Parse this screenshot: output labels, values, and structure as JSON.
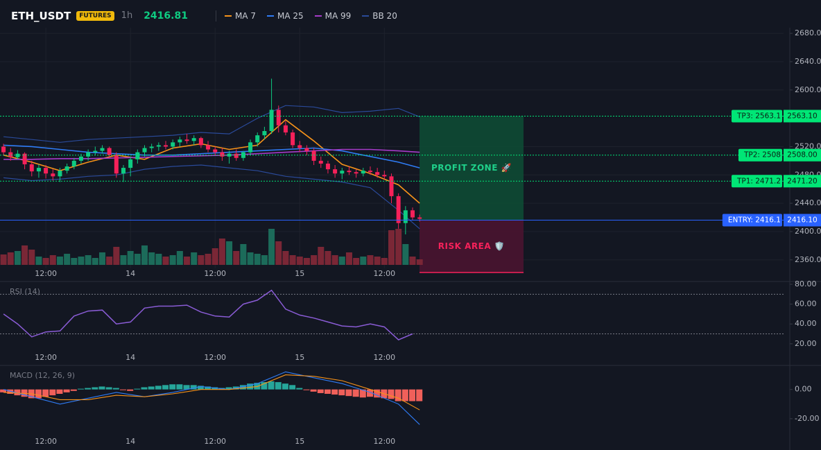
{
  "header": {
    "symbol": "ETH_USDT",
    "badge": "FUTURES",
    "interval": "1h",
    "price": "2416.81"
  },
  "chart_data": [
    {
      "type": "candlestick",
      "categories": [
        null,
        null,
        null,
        null,
        null,
        null,
        "12:00",
        null,
        null,
        null,
        null,
        null,
        null,
        null,
        null,
        null,
        null,
        null,
        "14",
        null,
        null,
        null,
        null,
        null,
        null,
        null,
        null,
        null,
        null,
        null,
        "12:00",
        null,
        null,
        null,
        null,
        null,
        null,
        null,
        null,
        null,
        null,
        null,
        "15",
        null,
        null,
        null,
        null,
        null,
        null,
        null,
        null,
        null,
        null,
        null,
        "12:00",
        null,
        null,
        null,
        null,
        null
      ],
      "xlim": [
        -0.5,
        110.6
      ],
      "ylim": [
        2350,
        2685
      ],
      "yticks": [
        {
          "value": 2680,
          "label": "2680.00"
        },
        {
          "value": 2640,
          "label": "2640.00"
        },
        {
          "value": 2600,
          "label": "2600.00"
        },
        {
          "value": 2520,
          "label": "2520.00"
        },
        {
          "value": 2480,
          "label": "2480.00"
        },
        {
          "value": 2440,
          "label": "2440.00"
        },
        {
          "value": 2400,
          "label": "2400.00"
        },
        {
          "value": 2360,
          "label": "2360.00"
        }
      ],
      "grid": true,
      "up_color": "#0ecb81",
      "down_color": "#f6215a",
      "open": [
        2520,
        2512,
        2505,
        2510,
        2495,
        2485,
        2490,
        2482,
        2478,
        2486,
        2492,
        2500,
        2506,
        2512,
        2514,
        2518,
        2508,
        2482,
        2490,
        2502,
        2512,
        2518,
        2520,
        2522,
        2520,
        2526,
        2530,
        2528,
        2532,
        2522,
        2516,
        2512,
        2506,
        2510,
        2504,
        2512,
        2526,
        2536,
        2542,
        2572,
        2550,
        2540,
        2522,
        2518,
        2514,
        2500,
        2496,
        2488,
        2482,
        2486,
        2484,
        2482,
        2486,
        2484,
        2480,
        2478,
        2450,
        2412,
        2430,
        2420
      ],
      "high": [
        2524,
        2518,
        2515,
        2512,
        2500,
        2495,
        2494,
        2488,
        2490,
        2496,
        2504,
        2510,
        2516,
        2520,
        2522,
        2520,
        2512,
        2494,
        2506,
        2516,
        2522,
        2524,
        2526,
        2528,
        2530,
        2534,
        2538,
        2536,
        2534,
        2528,
        2520,
        2518,
        2514,
        2516,
        2514,
        2530,
        2540,
        2548,
        2616,
        2578,
        2556,
        2544,
        2528,
        2522,
        2518,
        2506,
        2500,
        2494,
        2490,
        2492,
        2488,
        2490,
        2492,
        2490,
        2486,
        2482,
        2454,
        2436,
        2434,
        2424
      ],
      "low": [
        2508,
        2500,
        2502,
        2488,
        2478,
        2476,
        2475,
        2472,
        2470,
        2482,
        2488,
        2496,
        2500,
        2508,
        2510,
        2504,
        2476,
        2470,
        2478,
        2496,
        2506,
        2512,
        2514,
        2516,
        2516,
        2520,
        2524,
        2522,
        2518,
        2512,
        2508,
        2500,
        2496,
        2500,
        2500,
        2508,
        2520,
        2530,
        2538,
        2540,
        2536,
        2518,
        2512,
        2508,
        2494,
        2490,
        2482,
        2476,
        2474,
        2480,
        2476,
        2478,
        2480,
        2476,
        2474,
        2440,
        2404,
        2396,
        2416,
        2414
      ],
      "close": [
        2512,
        2505,
        2510,
        2495,
        2485,
        2490,
        2482,
        2478,
        2486,
        2492,
        2500,
        2506,
        2512,
        2514,
        2518,
        2508,
        2482,
        2490,
        2502,
        2512,
        2518,
        2520,
        2522,
        2520,
        2526,
        2530,
        2528,
        2532,
        2522,
        2516,
        2512,
        2506,
        2510,
        2504,
        2512,
        2526,
        2536,
        2542,
        2572,
        2550,
        2540,
        2522,
        2518,
        2514,
        2500,
        2496,
        2488,
        2482,
        2486,
        2484,
        2482,
        2486,
        2484,
        2480,
        2478,
        2450,
        2412,
        2430,
        2420,
        2418
      ],
      "volume": [
        15,
        18,
        20,
        28,
        22,
        12,
        10,
        14,
        12,
        16,
        10,
        12,
        14,
        10,
        18,
        12,
        26,
        14,
        20,
        16,
        28,
        18,
        16,
        12,
        14,
        20,
        12,
        18,
        14,
        16,
        24,
        38,
        34,
        20,
        30,
        18,
        16,
        14,
        52,
        34,
        20,
        14,
        12,
        10,
        14,
        26,
        20,
        14,
        12,
        18,
        10,
        12,
        14,
        12,
        10,
        50,
        52,
        30,
        12,
        8
      ],
      "lines": [
        {
          "name": "MA 7",
          "color": "#f7931a",
          "x": [
            0,
            4,
            8,
            12,
            16,
            20,
            24,
            28,
            32,
            36,
            40,
            44,
            48,
            52,
            56,
            59
          ],
          "values": [
            2508,
            2498,
            2486,
            2498,
            2508,
            2502,
            2518,
            2524,
            2516,
            2522,
            2558,
            2528,
            2495,
            2482,
            2466,
            2440
          ]
        },
        {
          "name": "MA 25",
          "color": "#2f7cf6",
          "x": [
            0,
            4,
            8,
            12,
            16,
            20,
            24,
            28,
            32,
            36,
            40,
            44,
            48,
            52,
            56,
            59
          ],
          "values": [
            2522,
            2520,
            2516,
            2512,
            2510,
            2508,
            2508,
            2510,
            2512,
            2514,
            2516,
            2518,
            2514,
            2506,
            2498,
            2490
          ]
        },
        {
          "name": "MA 99",
          "color": "#a63bc9",
          "x": [
            0,
            4,
            8,
            12,
            16,
            20,
            24,
            28,
            32,
            36,
            40,
            44,
            48,
            52,
            56,
            59
          ],
          "values": [
            2502,
            2502,
            2503,
            2503,
            2504,
            2505,
            2506,
            2507,
            2508,
            2510,
            2512,
            2514,
            2516,
            2516,
            2514,
            2512
          ]
        }
      ],
      "bands": {
        "name": "BB 20",
        "color": "#2a4a9a",
        "x": [
          0,
          4,
          8,
          12,
          16,
          20,
          24,
          28,
          32,
          36,
          40,
          44,
          48,
          52,
          56,
          59
        ],
        "upper": [
          2534,
          2530,
          2526,
          2530,
          2532,
          2534,
          2536,
          2540,
          2538,
          2560,
          2578,
          2576,
          2568,
          2570,
          2574,
          2562
        ],
        "lower": [
          2476,
          2472,
          2474,
          2478,
          2480,
          2488,
          2492,
          2494,
          2490,
          2486,
          2478,
          2474,
          2470,
          2462,
          2430,
          2404
        ]
      },
      "levels": [
        {
          "name": "TP3: 2563.1",
          "value": 2563.1,
          "value_label": "2563.10",
          "color": "#00e676",
          "style": "dotted"
        },
        {
          "name": "TP2: 2508",
          "value": 2508,
          "value_label": "2508.00",
          "color": "#00e676",
          "style": "dotted"
        },
        {
          "name": "TP1: 2471.2",
          "value": 2471.2,
          "value_label": "2471.20",
          "color": "#00e676",
          "style": "dotted"
        },
        {
          "name": "ENTRY: 2416.1",
          "value": 2416.1,
          "value_label": "2416.10",
          "color": "#2962ff",
          "style": "solid"
        }
      ],
      "zones": [
        {
          "label": "PROFIT ZONE 🚀",
          "color": "#0e4a34",
          "text_color": "#1fd08a"
        },
        {
          "label": "RISK AREA 🛡️",
          "color": "#4a1430",
          "text_color": "#f6215a"
        }
      ]
    },
    {
      "type": "line",
      "title": "RSI (14)",
      "ylim": [
        15,
        87
      ],
      "yticks": [
        {
          "value": 80,
          "label": "80.00"
        },
        {
          "value": 60,
          "label": "60.00"
        },
        {
          "value": 40,
          "label": "40.00"
        },
        {
          "value": 20,
          "label": "20.00"
        }
      ],
      "levels": [
        70,
        30
      ],
      "color": "#8a5cd6",
      "x": [
        0,
        2,
        4,
        6,
        8,
        10,
        12,
        14,
        16,
        18,
        20,
        22,
        24,
        26,
        28,
        30,
        32,
        34,
        36,
        38,
        40,
        42,
        44,
        46,
        48,
        50,
        52,
        54,
        56,
        58
      ],
      "values": [
        50,
        40,
        27,
        32,
        33,
        48,
        53,
        54,
        40,
        42,
        56,
        58,
        58,
        59,
        52,
        48,
        47,
        60,
        64,
        74,
        55,
        49,
        46,
        42,
        38,
        37,
        40,
        37,
        24,
        30
      ]
    },
    {
      "type": "macd",
      "title": "MACD (12, 26, 9)",
      "ylim": [
        -30,
        15
      ],
      "yticks": [
        {
          "value": 0,
          "label": "0.00"
        },
        {
          "value": -20,
          "label": "-20.00"
        }
      ],
      "up_color": "#26a69a",
      "down_color": "#f0605a",
      "histogram": [
        -2,
        -3,
        -4,
        -5,
        -6,
        -6,
        -5,
        -4,
        -3,
        -2,
        -1,
        0.5,
        1,
        1.5,
        2,
        1.5,
        1,
        -0.5,
        -1,
        0.5,
        1.5,
        2,
        2.5,
        3,
        3.5,
        3.5,
        3,
        3,
        2.5,
        2,
        1.5,
        1,
        1.5,
        2,
        3,
        4,
        4.5,
        5,
        5.5,
        5,
        4,
        3,
        1,
        -0.5,
        -1.5,
        -2.5,
        -3,
        -3.5,
        -4,
        -4.5,
        -5,
        -5.5,
        -5,
        -5.5,
        -6,
        -6.5,
        -8,
        -8,
        -8,
        -8
      ],
      "lines": [
        {
          "color": "#2f7cf6",
          "x": [
            0,
            4,
            8,
            12,
            16,
            20,
            24,
            28,
            32,
            36,
            40,
            44,
            48,
            52,
            56,
            59
          ],
          "values": [
            0,
            -5,
            -10,
            -6,
            -2,
            -5,
            -2,
            2,
            0,
            4,
            12,
            8,
            4,
            -2,
            -10,
            -24
          ]
        },
        {
          "color": "#f7931a",
          "x": [
            0,
            4,
            8,
            12,
            16,
            20,
            24,
            28,
            32,
            36,
            40,
            44,
            48,
            52,
            56,
            59
          ],
          "values": [
            -2,
            -3,
            -7,
            -7,
            -4,
            -5,
            -3,
            0,
            0,
            2,
            10,
            9,
            6,
            0,
            -6,
            -14
          ]
        }
      ]
    }
  ]
}
